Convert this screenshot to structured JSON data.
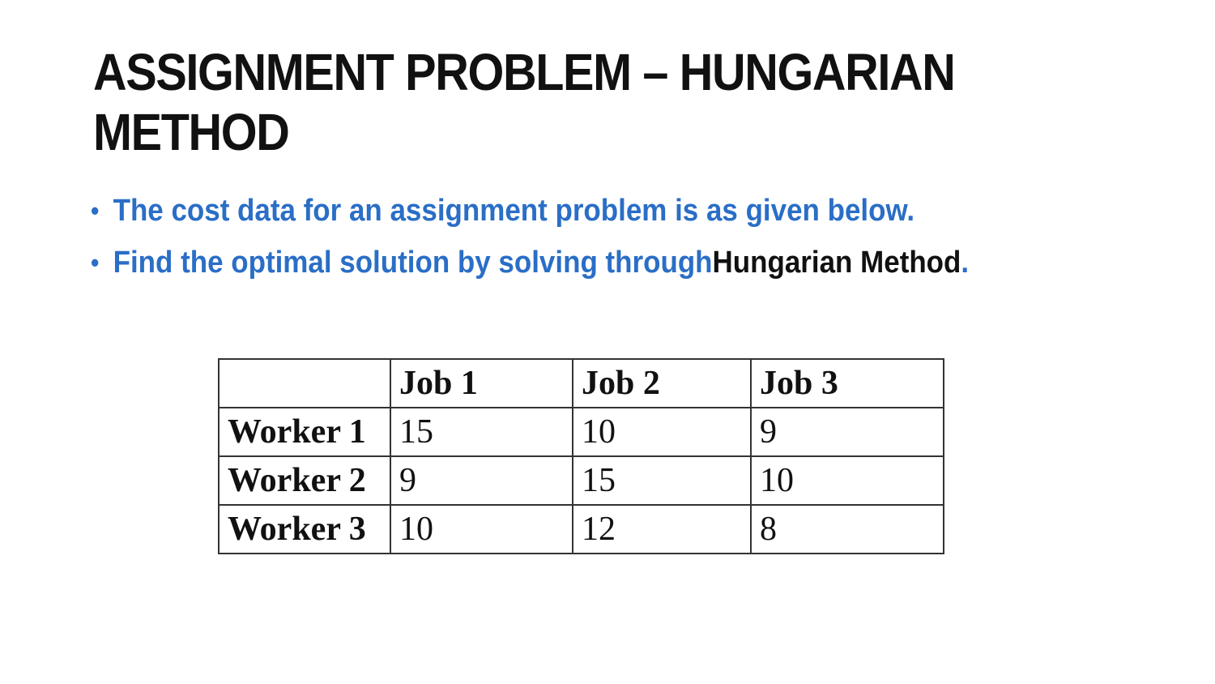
{
  "slide": {
    "title": "ASSIGNMENT PROBLEM – HUNGARIAN METHOD",
    "bullets": [
      {
        "text": "The cost data for an assignment problem is as given below."
      },
      {
        "text_blue": "Find the optimal solution by solving through ",
        "text_black": "Hungarian Method",
        "text_end": "."
      }
    ],
    "bullet_glyph": "•"
  },
  "table": {
    "corner": "",
    "columns": [
      "Job 1",
      "Job 2",
      "Job 3"
    ],
    "rows": [
      {
        "label": "Worker 1",
        "values": [
          "15",
          "10",
          "9"
        ]
      },
      {
        "label": "Worker 2",
        "values": [
          "9",
          "15",
          "10"
        ]
      },
      {
        "label": "Worker 3",
        "values": [
          "10",
          "12",
          "8"
        ]
      }
    ]
  },
  "colors": {
    "bullet_text": "#2a6ec6",
    "title_text": "#111111",
    "table_border": "#333333"
  }
}
